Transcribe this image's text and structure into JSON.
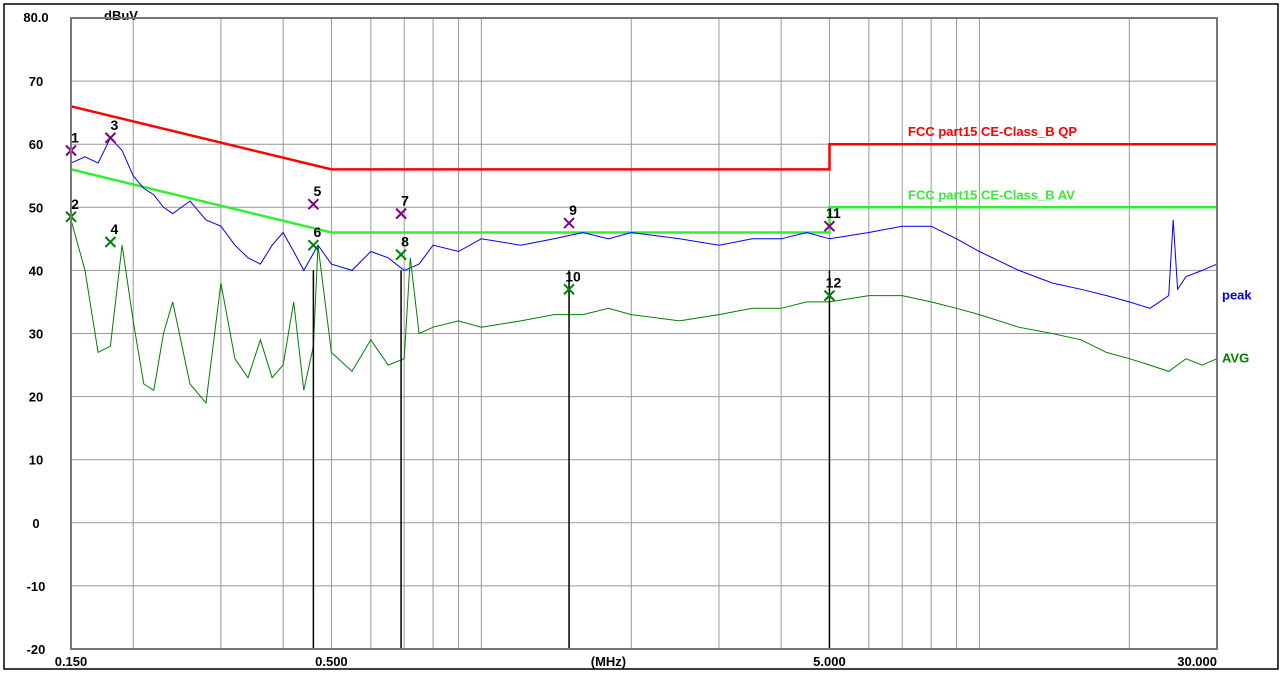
{
  "chart_data": {
    "type": "line",
    "title": "",
    "xlabel": "(MHz)",
    "ylabel": "dBuV",
    "x_scale": "log",
    "xlim": [
      0.15,
      30
    ],
    "ylim": [
      -20,
      80
    ],
    "grid": true,
    "y_ticks": [
      "80.0",
      "70",
      "60",
      "50",
      "40",
      "30",
      "20",
      "10",
      "0",
      "-10",
      "-20"
    ],
    "x_ticks": [
      {
        "value": 0.15,
        "label": "0.150"
      },
      {
        "value": 0.5,
        "label": "0.500"
      },
      {
        "value": 1.8,
        "label": "(MHz)"
      },
      {
        "value": 5,
        "label": "5.000"
      },
      {
        "value": 30,
        "label": "30.000"
      }
    ],
    "limit_lines": [
      {
        "name": "FCC part15 CE-Class_B QP",
        "color": "#ff0000",
        "points": [
          [
            0.15,
            66
          ],
          [
            0.5,
            56
          ],
          [
            5,
            56
          ],
          [
            5,
            60
          ],
          [
            30,
            60
          ]
        ]
      },
      {
        "name": "FCC part15 CE-Class_B AV",
        "color": "#33ee33",
        "points": [
          [
            0.15,
            56
          ],
          [
            0.5,
            46
          ],
          [
            5,
            46
          ],
          [
            5,
            50
          ],
          [
            30,
            50
          ]
        ]
      }
    ],
    "series": [
      {
        "name": "peak",
        "color": "#0000ff",
        "x": [
          0.15,
          0.16,
          0.17,
          0.18,
          0.19,
          0.2,
          0.21,
          0.22,
          0.23,
          0.24,
          0.26,
          0.28,
          0.3,
          0.32,
          0.34,
          0.36,
          0.38,
          0.4,
          0.42,
          0.44,
          0.47,
          0.5,
          0.55,
          0.6,
          0.65,
          0.7,
          0.75,
          0.8,
          0.9,
          1.0,
          1.2,
          1.4,
          1.6,
          1.8,
          2.0,
          2.5,
          3.0,
          3.5,
          4.0,
          4.5,
          5.0,
          6.0,
          7.0,
          8.0,
          9.0,
          10.0,
          12.0,
          14.0,
          16.0,
          18.0,
          20.0,
          22.0,
          23.0,
          24.0,
          24.5,
          25.0,
          26.0,
          28.0,
          30.0
        ],
        "values": [
          57,
          58,
          57,
          61,
          59,
          55,
          53,
          52,
          50,
          49,
          51,
          48,
          47,
          44,
          42,
          41,
          44,
          46,
          43,
          40,
          44,
          41,
          40,
          43,
          42,
          40,
          41,
          44,
          43,
          45,
          44,
          45,
          46,
          45,
          46,
          45,
          44,
          45,
          45,
          46,
          45,
          46,
          47,
          47,
          45,
          43,
          40,
          38,
          37,
          36,
          35,
          34,
          35,
          36,
          48,
          37,
          39,
          40,
          41
        ]
      },
      {
        "name": "AVG",
        "color": "#008000",
        "x": [
          0.15,
          0.16,
          0.17,
          0.18,
          0.19,
          0.2,
          0.21,
          0.22,
          0.23,
          0.24,
          0.26,
          0.28,
          0.3,
          0.32,
          0.34,
          0.36,
          0.38,
          0.4,
          0.42,
          0.44,
          0.46,
          0.47,
          0.5,
          0.55,
          0.6,
          0.65,
          0.7,
          0.72,
          0.75,
          0.8,
          0.9,
          1.0,
          1.2,
          1.4,
          1.6,
          1.8,
          2.0,
          2.5,
          3.0,
          3.5,
          4.0,
          4.5,
          5.0,
          6.0,
          7.0,
          8.0,
          9.0,
          10.0,
          12.0,
          14.0,
          16.0,
          18.0,
          20.0,
          22.0,
          24.0,
          26.0,
          28.0,
          30.0
        ],
        "values": [
          48,
          40,
          27,
          28,
          44,
          32,
          22,
          21,
          30,
          35,
          22,
          19,
          38,
          26,
          23,
          29,
          23,
          25,
          35,
          21,
          28,
          44,
          27,
          24,
          29,
          25,
          26,
          42,
          30,
          31,
          32,
          31,
          32,
          33,
          33,
          34,
          33,
          32,
          33,
          34,
          34,
          35,
          35,
          36,
          36,
          35,
          34,
          33,
          31,
          30,
          29,
          27,
          26,
          25,
          24,
          26,
          25,
          26
        ]
      }
    ],
    "markers": [
      {
        "label": "1",
        "x": 0.15,
        "y": 59.0,
        "color": "#800080"
      },
      {
        "label": "2",
        "x": 0.15,
        "y": 48.5,
        "color": "#008000"
      },
      {
        "label": "3",
        "x": 0.18,
        "y": 61.0,
        "color": "#800080"
      },
      {
        "label": "4",
        "x": 0.18,
        "y": 44.5,
        "color": "#008000"
      },
      {
        "label": "5",
        "x": 0.46,
        "y": 50.5,
        "color": "#800080"
      },
      {
        "label": "6",
        "x": 0.46,
        "y": 44.0,
        "color": "#008000"
      },
      {
        "label": "7",
        "x": 0.69,
        "y": 49.0,
        "color": "#800080"
      },
      {
        "label": "8",
        "x": 0.69,
        "y": 42.5,
        "color": "#008000"
      },
      {
        "label": "9",
        "x": 1.5,
        "y": 47.5,
        "color": "#800080"
      },
      {
        "label": "10",
        "x": 1.5,
        "y": 37.0,
        "color": "#008000"
      },
      {
        "label": "11",
        "x": 5.0,
        "y": 47.0,
        "color": "#800080"
      },
      {
        "label": "12",
        "x": 5.0,
        "y": 36.0,
        "color": "#008000"
      }
    ],
    "marker_lines_x": [
      0.46,
      0.69,
      1.5,
      5.0
    ]
  }
}
